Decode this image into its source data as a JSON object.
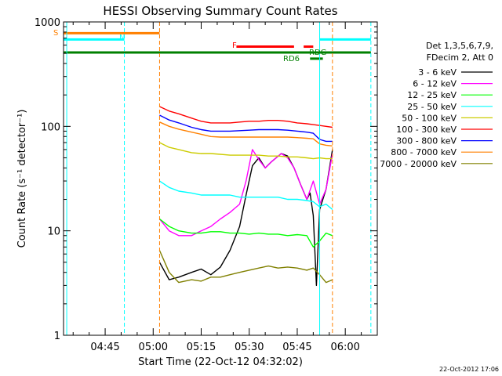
{
  "chart_data": {
    "type": "line",
    "title": "HESSI Observing Summary Count Rates",
    "xlabel": "Start Time (22-Oct-12 04:32:02)",
    "ylabel": "Count Rate (s⁻¹ detector⁻¹)",
    "yscale": "log",
    "xlim": [
      "04:32",
      "06:10"
    ],
    "ylim": [
      1,
      1000
    ],
    "x_ticks": [
      "04:45",
      "05:00",
      "05:15",
      "05:30",
      "05:45",
      "06:00"
    ],
    "y_ticks": [
      "1",
      "10",
      "100",
      "1000"
    ],
    "grid": false,
    "legend_position": "right",
    "legend_header": [
      "Det 1,3,5,6,7,9,",
      "FDecim 2, Att 0"
    ],
    "timestamp": "22-Oct-2012 17:06",
    "flag_labels": {
      "s": "S",
      "n": "N",
      "f": "F",
      "rd6": "RD6",
      "rdg": "RDG"
    },
    "vlines": [
      {
        "t": "04:33",
        "color": "#00ffff",
        "style": "solid"
      },
      {
        "t": "04:51",
        "color": "#00ffff",
        "style": "dashed"
      },
      {
        "t": "05:02",
        "color": "#ff8000",
        "style": "dashed"
      },
      {
        "t": "05:52",
        "color": "#00ffff",
        "style": "solid"
      },
      {
        "t": "05:56",
        "color": "#ff8000",
        "style": "dashed"
      },
      {
        "t": "06:08",
        "color": "#00ffff",
        "style": "dashed"
      }
    ],
    "flags": [
      {
        "name": "S",
        "color": "#ff8000",
        "y": 780,
        "segments": [
          [
            "04:32",
            "05:02"
          ]
        ]
      },
      {
        "name": "N",
        "color": "#00ffff",
        "y": 680,
        "segments": [
          [
            "04:32",
            "04:51"
          ],
          [
            "05:52",
            "06:08"
          ]
        ]
      },
      {
        "name": "F",
        "color": "#ff0000",
        "y": 580,
        "segments": [
          [
            "05:26",
            "05:44"
          ],
          [
            "05:47",
            "05:50"
          ]
        ]
      },
      {
        "name": "RDG",
        "color": "#008000",
        "y": 510,
        "segments": [
          [
            "04:32",
            "06:08"
          ]
        ]
      },
      {
        "name": "RD6",
        "color": "#008000",
        "y": 445,
        "segments": [
          [
            "05:49",
            "05:53"
          ]
        ]
      }
    ],
    "series": [
      {
        "name": "3 - 6 keV",
        "color": "#000000",
        "x": [
          "05:02",
          "05:05",
          "05:08",
          "05:12",
          "05:15",
          "05:18",
          "05:21",
          "05:24",
          "05:27",
          "05:29",
          "05:31",
          "05:33",
          "05:35",
          "05:37",
          "05:40",
          "05:42",
          "05:44",
          "05:46",
          "05:48",
          "05:49",
          "05:50",
          "05:51",
          "05:52",
          "05:54",
          "05:56"
        ],
        "y": [
          5,
          3.4,
          3.6,
          4,
          4.3,
          3.8,
          4.5,
          6.5,
          11,
          22,
          42,
          50,
          40,
          46,
          55,
          52,
          40,
          28,
          20,
          23,
          14,
          3,
          16,
          25,
          60
        ]
      },
      {
        "name": "6 - 12 keV",
        "color": "#ff00ff",
        "x": [
          "05:02",
          "05:05",
          "05:08",
          "05:12",
          "05:15",
          "05:18",
          "05:21",
          "05:24",
          "05:27",
          "05:29",
          "05:31",
          "05:33",
          "05:35",
          "05:37",
          "05:40",
          "05:42",
          "05:44",
          "05:46",
          "05:48",
          "05:50",
          "05:52",
          "05:54",
          "05:56"
        ],
        "y": [
          13,
          10,
          9,
          9,
          10,
          11,
          13,
          15,
          18,
          30,
          60,
          48,
          40,
          46,
          55,
          50,
          40,
          28,
          20,
          30,
          18,
          25,
          55
        ]
      },
      {
        "name": "12 - 25 keV",
        "color": "#00ff00",
        "x": [
          "05:02",
          "05:05",
          "05:08",
          "05:12",
          "05:15",
          "05:18",
          "05:21",
          "05:24",
          "05:27",
          "05:30",
          "05:33",
          "05:36",
          "05:39",
          "05:42",
          "05:45",
          "05:48",
          "05:50",
          "05:52",
          "05:54",
          "05:56"
        ],
        "y": [
          13,
          11,
          10,
          9.5,
          9.5,
          9.8,
          9.8,
          9.5,
          9.5,
          9.3,
          9.5,
          9.3,
          9.3,
          9,
          9.2,
          9,
          7,
          8,
          9.5,
          9
        ]
      },
      {
        "name": "25 - 50 keV",
        "color": "#00ffff",
        "x": [
          "05:02",
          "05:05",
          "05:08",
          "05:12",
          "05:15",
          "05:18",
          "05:21",
          "05:24",
          "05:27",
          "05:30",
          "05:33",
          "05:36",
          "05:39",
          "05:42",
          "05:45",
          "05:48",
          "05:50",
          "05:52",
          "05:54",
          "05:56"
        ],
        "y": [
          30,
          26,
          24,
          23,
          22,
          22,
          22,
          22,
          21,
          21,
          21,
          21,
          21,
          20,
          20,
          19.5,
          19,
          17,
          18,
          16
        ]
      },
      {
        "name": "50 - 100 keV",
        "color": "#cccc00",
        "x": [
          "05:02",
          "05:05",
          "05:08",
          "05:12",
          "05:15",
          "05:18",
          "05:21",
          "05:24",
          "05:27",
          "05:30",
          "05:33",
          "05:36",
          "05:39",
          "05:42",
          "05:45",
          "05:48",
          "05:50",
          "05:52",
          "05:54",
          "05:56"
        ],
        "y": [
          70,
          63,
          60,
          56,
          55,
          55,
          54,
          53,
          53,
          53,
          53,
          52,
          52,
          51,
          51,
          50,
          49,
          50,
          49,
          49
        ]
      },
      {
        "name": "100 - 300 keV",
        "color": "#ff0000",
        "x": [
          "05:02",
          "05:05",
          "05:08",
          "05:12",
          "05:15",
          "05:18",
          "05:21",
          "05:24",
          "05:27",
          "05:30",
          "05:33",
          "05:36",
          "05:39",
          "05:42",
          "05:45",
          "05:48",
          "05:50",
          "05:52",
          "05:54",
          "05:56"
        ],
        "y": [
          155,
          140,
          132,
          120,
          112,
          108,
          108,
          108,
          110,
          112,
          112,
          114,
          114,
          112,
          108,
          106,
          104,
          102,
          100,
          98
        ]
      },
      {
        "name": "300 - 800 keV",
        "color": "#0000ff",
        "x": [
          "05:02",
          "05:05",
          "05:08",
          "05:12",
          "05:15",
          "05:18",
          "05:21",
          "05:24",
          "05:27",
          "05:30",
          "05:33",
          "05:36",
          "05:39",
          "05:42",
          "05:45",
          "05:48",
          "05:50",
          "05:52",
          "05:54",
          "05:56"
        ],
        "y": [
          128,
          115,
          108,
          98,
          93,
          90,
          90,
          90,
          91,
          92,
          93,
          93,
          93,
          92,
          90,
          88,
          86,
          75,
          72,
          72
        ]
      },
      {
        "name": "800 - 7000 keV",
        "color": "#ff8000",
        "x": [
          "05:02",
          "05:05",
          "05:08",
          "05:12",
          "05:15",
          "05:18",
          "05:21",
          "05:24",
          "05:27",
          "05:30",
          "05:33",
          "05:36",
          "05:39",
          "05:42",
          "05:45",
          "05:48",
          "05:50",
          "05:52",
          "05:54",
          "05:56"
        ],
        "y": [
          110,
          100,
          94,
          88,
          84,
          80,
          79,
          79,
          79,
          79,
          79,
          79,
          79,
          79,
          78,
          77,
          76,
          68,
          66,
          65
        ]
      },
      {
        "name": "7000 - 20000 keV",
        "color": "#808000",
        "x": [
          "05:02",
          "05:05",
          "05:08",
          "05:12",
          "05:15",
          "05:18",
          "05:21",
          "05:24",
          "05:27",
          "05:30",
          "05:33",
          "05:36",
          "05:39",
          "05:42",
          "05:45",
          "05:48",
          "05:50",
          "05:52",
          "05:54",
          "05:56"
        ],
        "y": [
          6.5,
          4,
          3.2,
          3.4,
          3.3,
          3.6,
          3.6,
          3.8,
          4,
          4.2,
          4.4,
          4.6,
          4.4,
          4.5,
          4.4,
          4.2,
          4.4,
          3.8,
          3.2,
          3.4
        ]
      }
    ]
  }
}
